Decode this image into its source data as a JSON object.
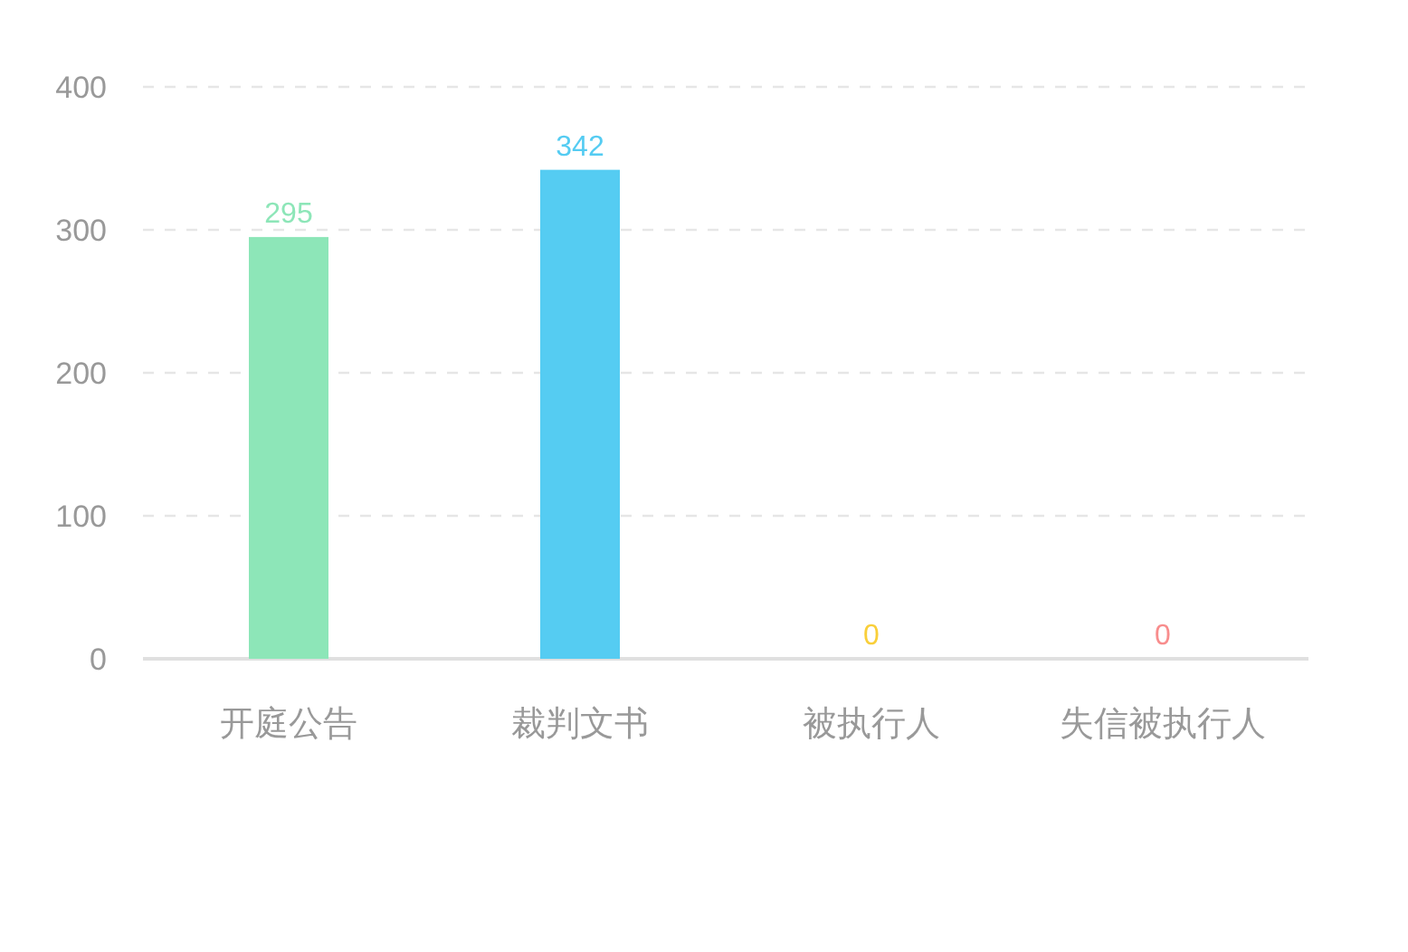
{
  "chart_data": {
    "type": "bar",
    "categories": [
      "开庭公告",
      "裁判文书",
      "被执行人",
      "失信被执行人"
    ],
    "values": [
      295,
      342,
      0,
      0
    ],
    "colors": [
      "#8de6b8",
      "#55ccf2",
      "#f9cf3a",
      "#f88d8d"
    ],
    "ylim": [
      0,
      400
    ],
    "yticks": [
      0,
      100,
      200,
      300,
      400
    ],
    "grid": "y",
    "data_labels": true
  }
}
